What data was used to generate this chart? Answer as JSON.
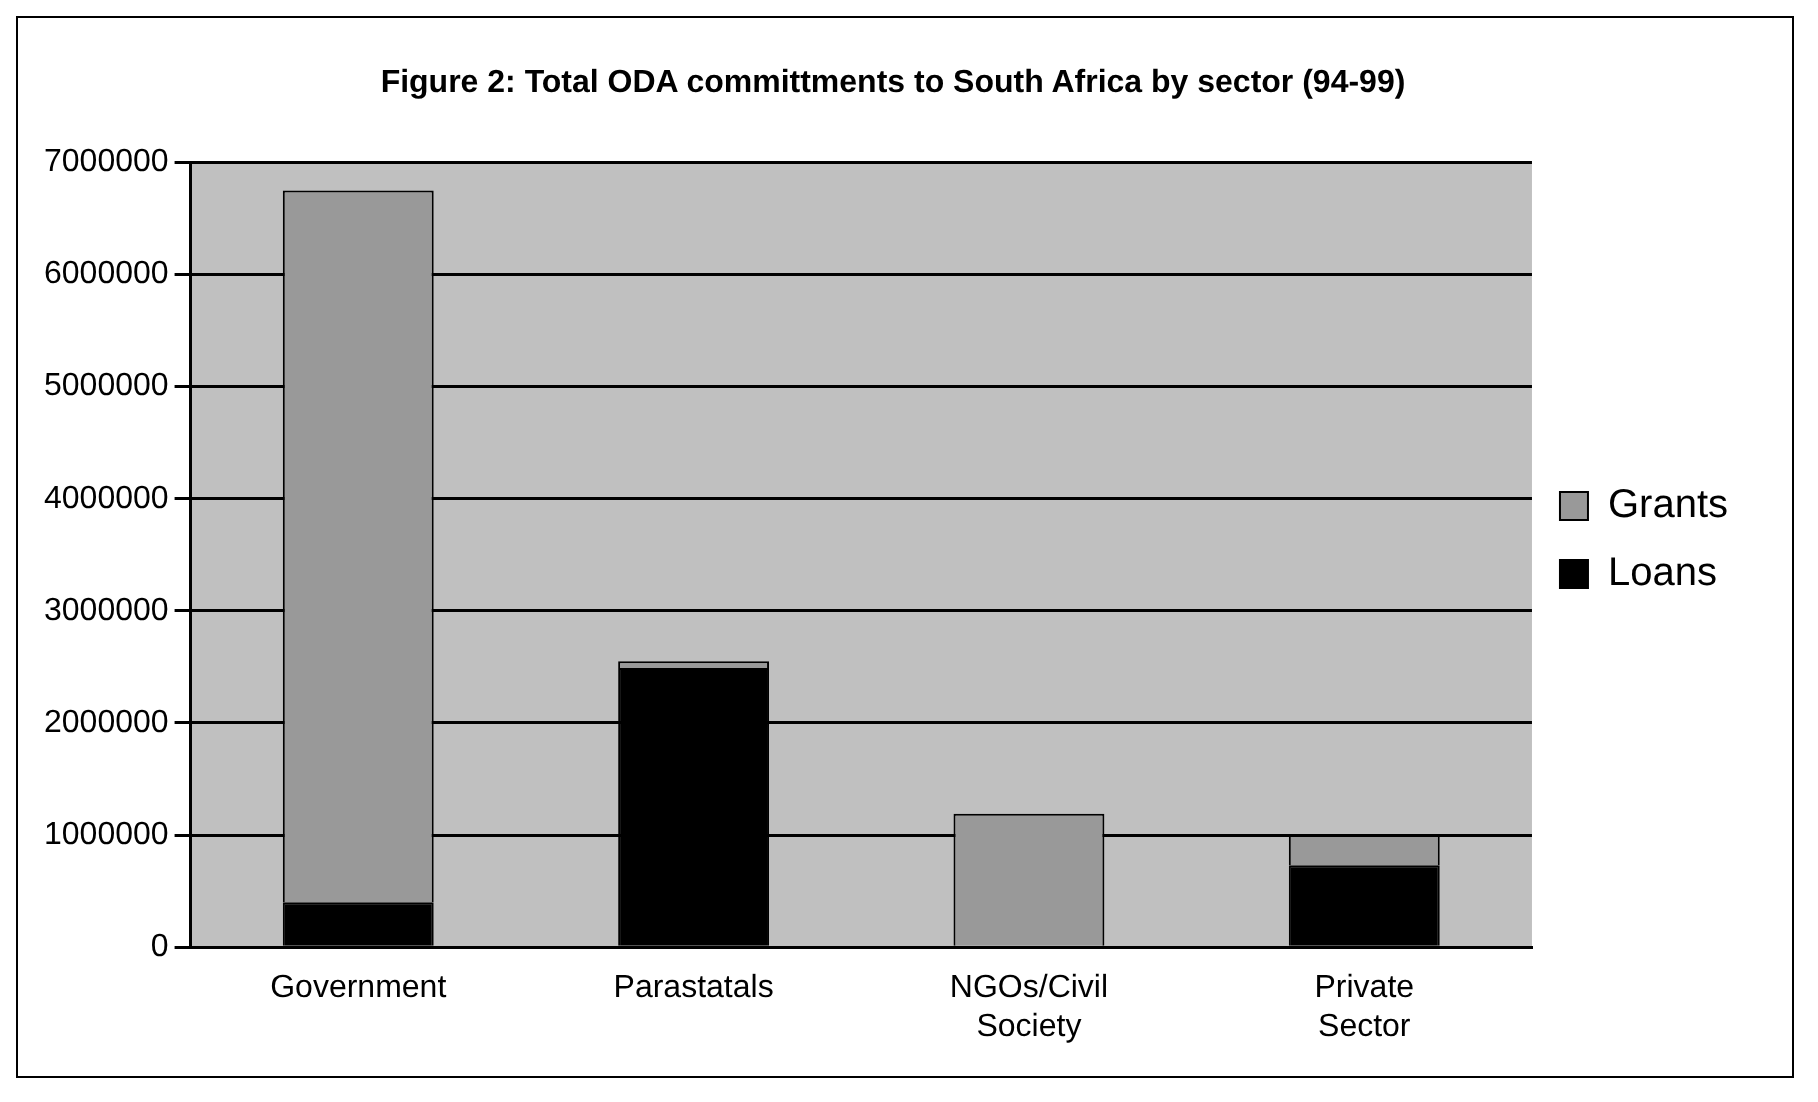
{
  "chart_data": {
    "type": "bar",
    "title": "Figure 2: Total ODA committments to South Africa by sector (94-99)",
    "categories": [
      "Government",
      "Parastatals",
      "NGOs/Civil Society",
      "Private Sector"
    ],
    "stacked": true,
    "series": [
      {
        "name": "Loans",
        "color": "#000000",
        "values": [
          400000,
          2490000,
          0,
          730000
        ]
      },
      {
        "name": "Grants",
        "color": "#999999",
        "values": [
          6350000,
          60000,
          1190000,
          270000
        ]
      }
    ],
    "ylim": [
      0,
      7000000
    ],
    "yticks": [
      0,
      1000000,
      2000000,
      3000000,
      4000000,
      5000000,
      6000000,
      7000000
    ],
    "grid": "y",
    "legend": "right"
  }
}
